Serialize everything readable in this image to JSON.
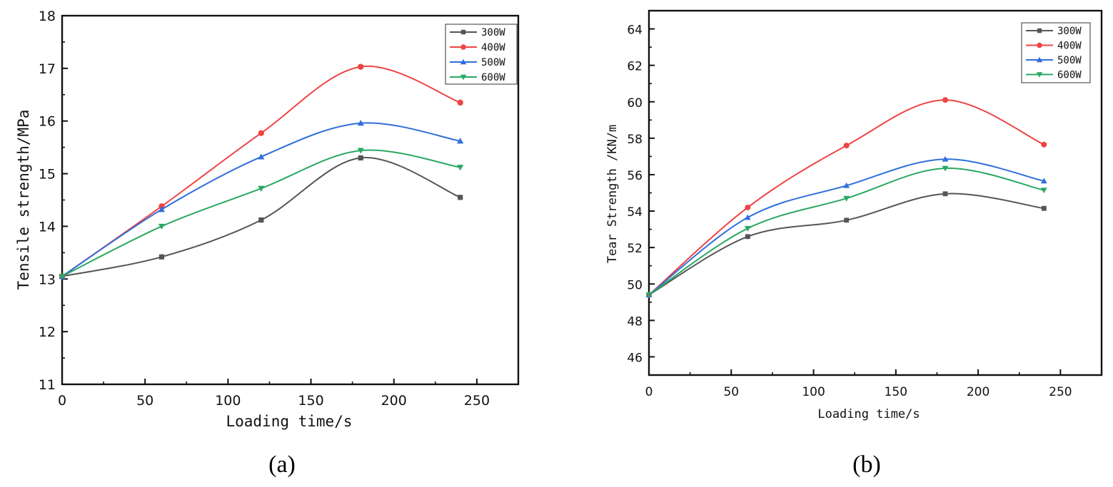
{
  "chart_data": [
    {
      "type": "line",
      "panel_label": "(a)",
      "title": "",
      "xlabel": "Loading time/s",
      "ylabel": "Tensile strength/MPa",
      "xlim": [
        0,
        275
      ],
      "ylim": [
        11,
        18
      ],
      "xticks": [
        0,
        50,
        100,
        150,
        200,
        250
      ],
      "yticks": [
        11,
        12,
        13,
        14,
        15,
        16,
        17,
        18
      ],
      "legend_position": "top-right",
      "x": [
        0,
        60,
        120,
        180,
        240
      ],
      "series": [
        {
          "name": "300W",
          "color": "#555555",
          "marker": "square",
          "values": [
            13.05,
            13.42,
            14.12,
            15.3,
            14.55
          ]
        },
        {
          "name": "400W",
          "color": "#ef4444",
          "marker": "circle",
          "values": [
            13.05,
            14.38,
            15.77,
            17.03,
            16.35
          ]
        },
        {
          "name": "500W",
          "color": "#2f6fdb",
          "marker": "triangle-up",
          "values": [
            13.05,
            14.32,
            15.32,
            15.96,
            15.62
          ]
        },
        {
          "name": "600W",
          "color": "#2aa863",
          "marker": "triangle-down",
          "values": [
            13.05,
            14.0,
            14.72,
            15.44,
            15.12
          ]
        }
      ]
    },
    {
      "type": "line",
      "panel_label": "(b)",
      "title": "",
      "xlabel": "Loading time/s",
      "ylabel": "Tear Strength /KN/m",
      "xlim": [
        0,
        275
      ],
      "ylim": [
        45,
        65
      ],
      "xticks": [
        0,
        50,
        100,
        150,
        200,
        250
      ],
      "yticks": [
        46,
        48,
        50,
        52,
        54,
        56,
        58,
        60,
        62,
        64
      ],
      "legend_position": "top-right",
      "x": [
        0,
        60,
        120,
        180,
        240
      ],
      "series": [
        {
          "name": "300W",
          "color": "#555555",
          "marker": "square",
          "values": [
            49.4,
            52.6,
            53.5,
            54.95,
            54.15
          ]
        },
        {
          "name": "400W",
          "color": "#ef4444",
          "marker": "circle",
          "values": [
            49.4,
            54.2,
            57.6,
            60.1,
            57.65
          ]
        },
        {
          "name": "500W",
          "color": "#2f6fdb",
          "marker": "triangle-up",
          "values": [
            49.4,
            53.65,
            55.4,
            56.85,
            55.65
          ]
        },
        {
          "name": "600W",
          "color": "#2aa863",
          "marker": "triangle-down",
          "values": [
            49.4,
            53.05,
            54.7,
            56.35,
            55.15
          ]
        }
      ]
    }
  ]
}
